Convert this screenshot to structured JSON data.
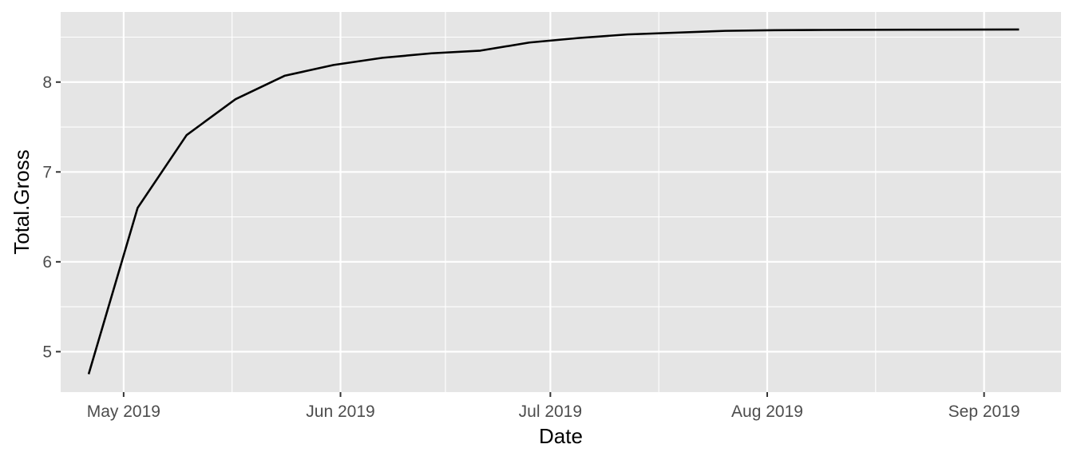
{
  "chart_data": {
    "type": "line",
    "title": "",
    "xlabel": "Date",
    "ylabel": "Total.Gross",
    "x_ticks": [
      {
        "date": "2019-05-01",
        "label": "May 2019"
      },
      {
        "date": "2019-06-01",
        "label": "Jun 2019"
      },
      {
        "date": "2019-07-01",
        "label": "Jul 2019"
      },
      {
        "date": "2019-08-01",
        "label": "Aug 2019"
      },
      {
        "date": "2019-09-01",
        "label": "Sep 2019"
      }
    ],
    "y_ticks": [
      5,
      6,
      7,
      8
    ],
    "xlim": [
      "2019-04-22",
      "2019-09-12"
    ],
    "ylim": [
      4.55,
      8.78
    ],
    "grid": true,
    "legend": "none",
    "colors": {
      "panel_background": "#e5e5e5",
      "grid": "#ffffff",
      "line": "#000000",
      "tick_mark": "#333333"
    },
    "series": [
      {
        "x": [
          "2019-04-26",
          "2019-05-03",
          "2019-05-10",
          "2019-05-17",
          "2019-05-24",
          "2019-05-31",
          "2019-06-07",
          "2019-06-14",
          "2019-06-21",
          "2019-06-28",
          "2019-07-05",
          "2019-07-12",
          "2019-07-19",
          "2019-07-26",
          "2019-08-02",
          "2019-08-09",
          "2019-08-16",
          "2019-08-23",
          "2019-08-30",
          "2019-09-06"
        ],
        "y": [
          4.75,
          6.6,
          7.41,
          7.81,
          8.07,
          8.19,
          8.27,
          8.32,
          8.35,
          8.44,
          8.49,
          8.53,
          8.55,
          8.57,
          8.577,
          8.58,
          8.582,
          8.583,
          8.584,
          8.585
        ]
      }
    ]
  }
}
